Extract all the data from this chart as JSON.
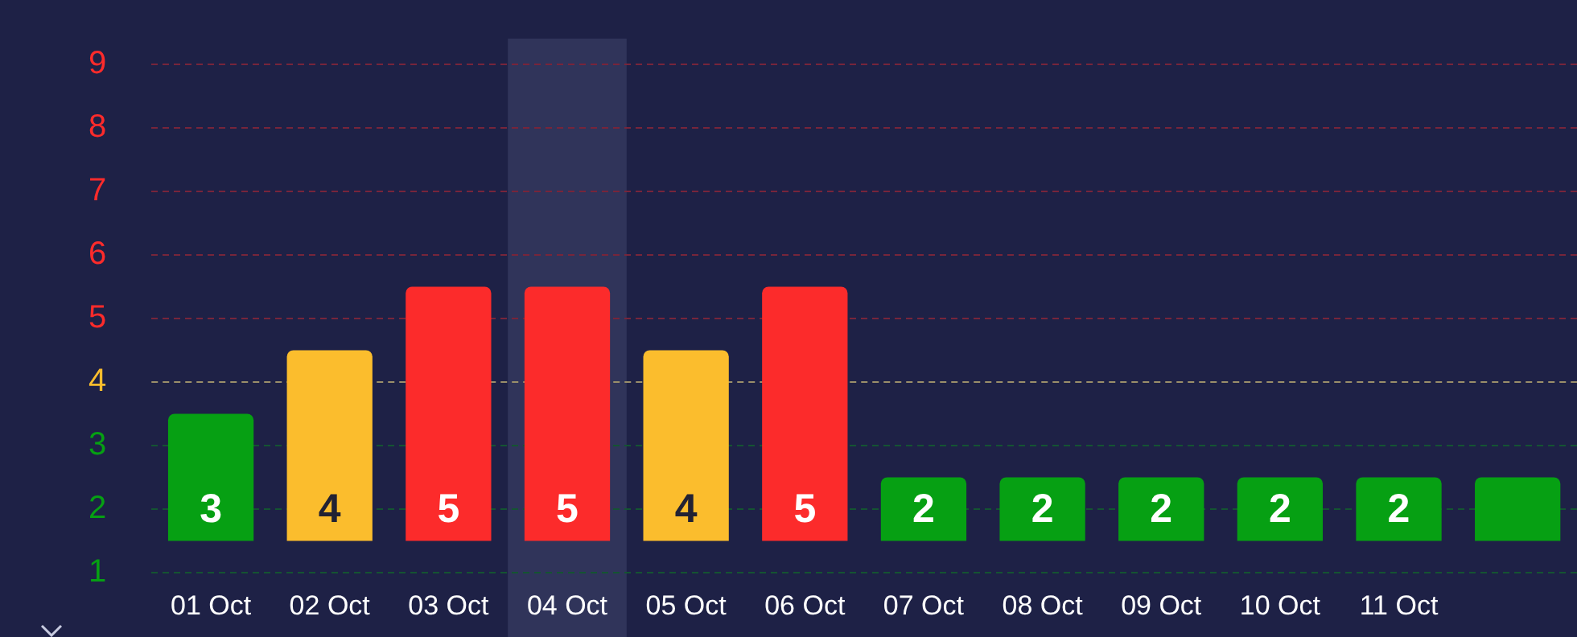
{
  "chart_data": {
    "type": "bar",
    "categories": [
      "01 Oct",
      "02 Oct",
      "03 Oct",
      "04 Oct",
      "05 Oct",
      "06 Oct",
      "07 Oct",
      "08 Oct",
      "09 Oct",
      "10 Oct",
      "11 Oct",
      null
    ],
    "base": [
      1.5,
      1.5,
      1.5,
      1.5,
      1.5,
      1.5,
      1.5,
      1.5,
      1.5,
      1.5,
      1.5,
      1.5
    ],
    "values": [
      2,
      3,
      4,
      4,
      3,
      4,
      1,
      1,
      1,
      1,
      1,
      1
    ],
    "value_labels": [
      "3",
      "4",
      "5",
      "5",
      "4",
      "5",
      "2",
      "2",
      "2",
      "2",
      "2",
      null
    ],
    "colors": [
      "#06a013",
      "#fbbd2d",
      "#fc2b2b",
      "#fc2b2b",
      "#fbbd2d",
      "#fc2b2b",
      "#06a013",
      "#06a013",
      "#06a013",
      "#06a013",
      "#06a013",
      "#06a013"
    ],
    "ylim": [
      1,
      9
    ],
    "yticks": [
      1,
      2,
      3,
      4,
      5,
      6,
      7,
      8,
      9
    ],
    "grid": "y",
    "ref_lines": [
      {
        "axis": "y",
        "value": 4,
        "color": "#9a8f6a",
        "line_style": "dashed"
      }
    ],
    "bands": [
      {
        "axis": "x",
        "from": "04 Oct",
        "to": "04 Oct",
        "color": "#30345a"
      }
    ]
  }
}
